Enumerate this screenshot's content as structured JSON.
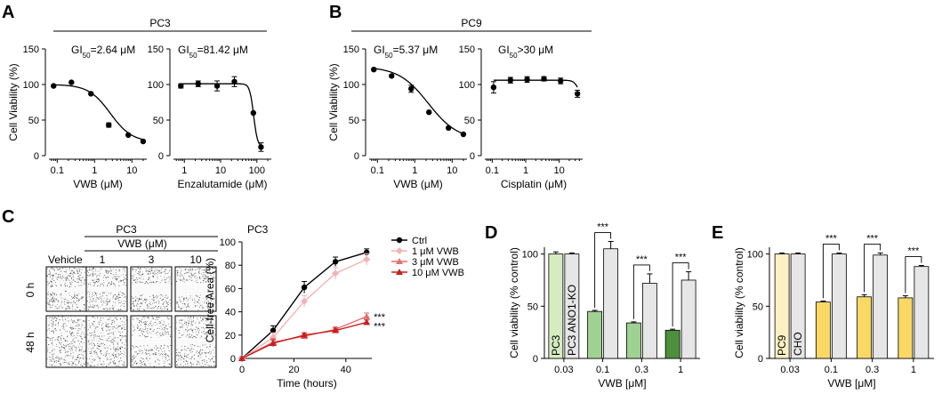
{
  "panel_labels": [
    "A",
    "B",
    "C",
    "D",
    "E"
  ],
  "colors": {
    "black": "#000000",
    "ctrl": "#000000",
    "vwb1": "#f3b3b3",
    "vwb3": "#e46f6f",
    "vwb10": "#c91f1f",
    "pc3_bar_light": "#d5ecc1",
    "pc3_bar_mid": "#9fd191",
    "pc3_bar_dark": "#4d8f3a",
    "pc9_bar_light": "#fbf0c3",
    "pc9_bar_mid": "#f9d964",
    "ko_bar": "#e6e6e6"
  },
  "chart_data": [
    {
      "id": "A1",
      "panel": "A",
      "type": "scatter",
      "group_label": "PC3",
      "annotation": "GI50=2.64 μM",
      "annotation_parts": [
        "GI",
        "50",
        "=2.64 μM"
      ],
      "xlabel": "VWB (μM)",
      "ylabel": "Cell Viability (%)",
      "xscale": "log",
      "xlim": [
        0.06,
        25
      ],
      "ylim": [
        0,
        150
      ],
      "xticks": [
        {
          "v": 0.1,
          "label": "0.1"
        },
        {
          "v": 1,
          "label": "1"
        },
        {
          "v": 10,
          "label": "10"
        }
      ],
      "yticks": [
        0,
        50,
        100,
        150
      ],
      "points": [
        {
          "x": 0.08,
          "y": 98
        },
        {
          "x": 0.24,
          "y": 103
        },
        {
          "x": 0.8,
          "y": 87
        },
        {
          "x": 2.4,
          "y": 43,
          "err": 3
        },
        {
          "x": 8,
          "y": 29
        },
        {
          "x": 20,
          "y": 20
        }
      ],
      "fit": {
        "top": 100,
        "bottom": 19,
        "ic50": 2.64,
        "hill": 1.5
      }
    },
    {
      "id": "A2",
      "panel": "A",
      "type": "scatter",
      "annotation": "GI50=81.42 μM",
      "annotation_parts": [
        "GI",
        "50",
        "=81.42 μM"
      ],
      "xlabel": "Enzalutamide (μM)",
      "ylabel": "",
      "xscale": "log",
      "xlim": [
        0.5,
        250
      ],
      "ylim": [
        0,
        150
      ],
      "xticks": [
        {
          "v": 1,
          "label": "1"
        },
        {
          "v": 10,
          "label": "10"
        },
        {
          "v": 100,
          "label": "100"
        }
      ],
      "yticks": [
        0,
        50,
        100,
        150
      ],
      "points": [
        {
          "x": 0.8,
          "y": 98,
          "err": 3
        },
        {
          "x": 2.4,
          "y": 101,
          "err": 4
        },
        {
          "x": 8,
          "y": 98,
          "err": 7
        },
        {
          "x": 24,
          "y": 104,
          "err": 7
        },
        {
          "x": 80,
          "y": 60
        },
        {
          "x": 130,
          "y": 12,
          "err": 6
        }
      ],
      "fit": {
        "top": 101,
        "bottom": 12,
        "ic50": 81.42,
        "hill": 8
      }
    },
    {
      "id": "B1",
      "panel": "B",
      "type": "scatter",
      "group_label": "PC9",
      "annotation": "GI50=5.37 μM",
      "annotation_parts": [
        "GI",
        "50",
        "=5.37 μM"
      ],
      "xlabel": "VWB (μM)",
      "ylabel": "Cell Viability (%)",
      "xscale": "log",
      "xlim": [
        0.06,
        25
      ],
      "ylim": [
        0,
        150
      ],
      "xticks": [
        {
          "v": 0.1,
          "label": "0.1"
        },
        {
          "v": 1,
          "label": "1"
        },
        {
          "v": 10,
          "label": "10"
        }
      ],
      "yticks": [
        0,
        50,
        100,
        150
      ],
      "points": [
        {
          "x": 0.08,
          "y": 121
        },
        {
          "x": 0.24,
          "y": 112
        },
        {
          "x": 0.8,
          "y": 94,
          "err": 5
        },
        {
          "x": 2.4,
          "y": 61
        },
        {
          "x": 8,
          "y": 39
        },
        {
          "x": 20,
          "y": 30
        }
      ],
      "fit": {
        "top": 125,
        "bottom": 22,
        "ic50": 2.3,
        "hill": 1.1
      }
    },
    {
      "id": "B2",
      "panel": "B",
      "type": "scatter",
      "annotation": "GI50>30 μM",
      "annotation_parts": [
        "GI",
        "50",
        ">30 μM"
      ],
      "xlabel": "Cisplatin (μM)",
      "ylabel": "",
      "xscale": "log",
      "xlim": [
        0.06,
        50
      ],
      "ylim": [
        0,
        150
      ],
      "xticks": [
        {
          "v": 0.1,
          "label": "0.1"
        },
        {
          "v": 1,
          "label": "1"
        },
        {
          "v": 10,
          "label": "10"
        }
      ],
      "yticks": [
        0,
        50,
        100,
        150
      ],
      "points": [
        {
          "x": 0.11,
          "y": 96,
          "err": 8
        },
        {
          "x": 0.35,
          "y": 106,
          "err": 4
        },
        {
          "x": 1.1,
          "y": 107,
          "err": 4
        },
        {
          "x": 3.5,
          "y": 108,
          "err": 3
        },
        {
          "x": 11,
          "y": 105,
          "err": 4
        },
        {
          "x": 35,
          "y": 87,
          "err": 5
        }
      ],
      "fit": {
        "top": 106,
        "bottom": 80,
        "ic50": 38,
        "hill": 6
      }
    },
    {
      "id": "C",
      "panel": "C",
      "type": "line",
      "title": "PC3",
      "xlabel": "Time (hours)",
      "ylabel": "Cell-free Area (%)",
      "xlim": [
        0,
        50
      ],
      "ylim": [
        0,
        100
      ],
      "xticks": [
        0,
        20,
        40
      ],
      "yticks": [
        0,
        20,
        40,
        60,
        80,
        100
      ],
      "x": [
        0,
        12,
        24,
        36,
        48
      ],
      "series": [
        {
          "name": "Ctrl",
          "color_key": "ctrl",
          "marker": "circle",
          "values": [
            0,
            24,
            61,
            83,
            91
          ],
          "err": [
            0,
            4,
            5,
            4,
            3
          ]
        },
        {
          "name": "1 μM VWB",
          "color_key": "vwb1",
          "marker": "diamond",
          "values": [
            0,
            18,
            49,
            73,
            85
          ],
          "err": [
            0,
            4,
            5,
            5,
            5
          ]
        },
        {
          "name": "3 μM VWB",
          "color_key": "vwb3",
          "marker": "triangle",
          "values": [
            0,
            14,
            19,
            25,
            36
          ],
          "err": [
            0,
            3,
            2,
            2,
            3
          ]
        },
        {
          "name": "10 μM VWB",
          "color_key": "vwb10",
          "marker": "triangle",
          "values": [
            0,
            13,
            20,
            24,
            31
          ],
          "err": [
            0,
            3,
            2,
            2,
            2
          ]
        }
      ],
      "annotations": [
        "***",
        "***"
      ]
    },
    {
      "id": "D",
      "panel": "D",
      "type": "bar",
      "xlabel": "VWB [μM]",
      "ylabel": "Cell viability (% control)",
      "ylim": [
        0,
        115
      ],
      "yticks": [
        0,
        50,
        100
      ],
      "categories": [
        "0.03",
        "0.1",
        "0.3",
        "1"
      ],
      "series": [
        {
          "name": "PC3",
          "values": [
            100,
            45,
            34,
            27
          ],
          "err": [
            2,
            1,
            1,
            1
          ],
          "colors": [
            "pc3_bar_light",
            "pc3_bar_mid",
            "pc3_bar_mid",
            "pc3_bar_dark"
          ]
        },
        {
          "name": "PC3 ANO1-KO",
          "values": [
            100,
            105,
            72,
            75
          ],
          "err": [
            1,
            7,
            9,
            8
          ],
          "colors": [
            "ko_bar",
            "ko_bar",
            "ko_bar",
            "ko_bar"
          ]
        }
      ],
      "significance": [
        "***",
        "***",
        "***"
      ]
    },
    {
      "id": "E",
      "panel": "E",
      "type": "bar",
      "xlabel": "VWB [μM]",
      "ylabel": "Cell viability (% control)",
      "ylim": [
        0,
        115
      ],
      "yticks": [
        0,
        50,
        100
      ],
      "categories": [
        "0.03",
        "0.1",
        "0.3",
        "1"
      ],
      "series": [
        {
          "name": "PC9",
          "values": [
            100,
            54,
            59,
            58
          ],
          "err": [
            1,
            1,
            2,
            2
          ],
          "colors": [
            "pc9_bar_light",
            "pc9_bar_mid",
            "pc9_bar_mid",
            "pc9_bar_mid"
          ]
        },
        {
          "name": "CHO",
          "values": [
            100,
            100,
            99,
            88
          ],
          "err": [
            1,
            1,
            2,
            1
          ],
          "colors": [
            "ko_bar",
            "ko_bar",
            "ko_bar",
            "ko_bar"
          ]
        }
      ],
      "significance": [
        "***",
        "***",
        "***"
      ]
    }
  ],
  "micrographs": {
    "group_label": "PC3",
    "treatment_label": "VWB (μM)",
    "column_labels": [
      "Vehicle",
      "1",
      "3",
      "10"
    ],
    "row_labels": [
      "0 h",
      "48 h"
    ]
  }
}
